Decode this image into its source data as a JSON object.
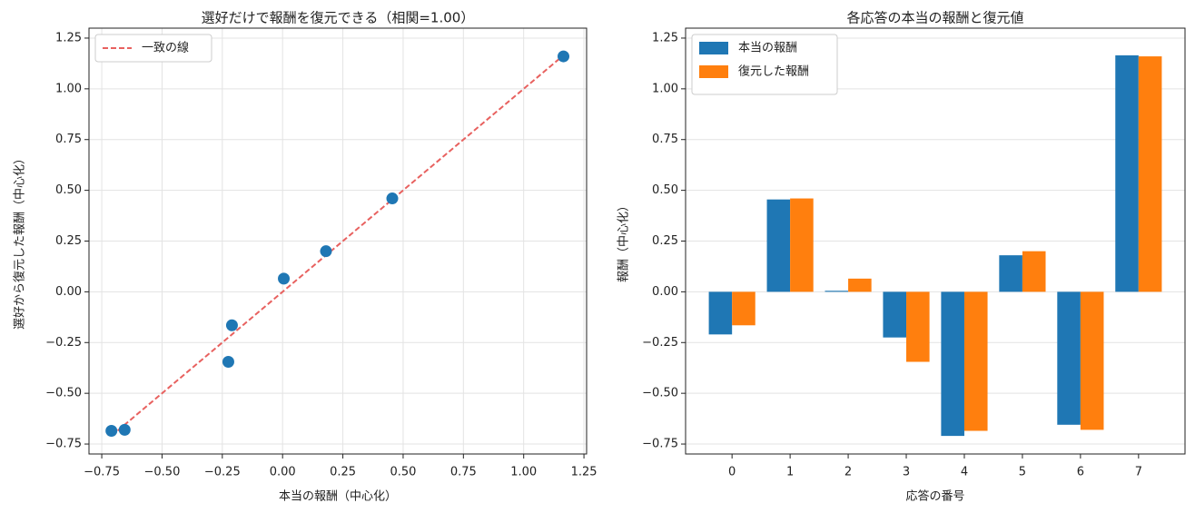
{
  "chart_data": [
    {
      "type": "scatter",
      "title": "選好だけで報酬を復元できる（相関=1.00）",
      "x_label": "本当の報酬（中心化）",
      "y_label": "選好から復元した報酬（中心化）",
      "x": [
        -0.71,
        -0.655,
        -0.225,
        -0.21,
        0.005,
        0.18,
        0.455,
        1.165
      ],
      "values": [
        -0.685,
        -0.68,
        -0.345,
        -0.165,
        0.065,
        0.2,
        0.46,
        1.16
      ],
      "color": "#1f77b4",
      "reference_line": {
        "name": "一致の線",
        "color": "#e8615f",
        "x": [
          -0.71,
          1.165
        ],
        "values": [
          -0.71,
          1.165
        ]
      },
      "xlim": [
        -0.803,
        1.261
      ],
      "ylim": [
        -0.799,
        1.299
      ],
      "xticks": [
        {
          "value": -0.75,
          "label": "−0.75"
        },
        {
          "value": -0.5,
          "label": "−0.50"
        },
        {
          "value": -0.25,
          "label": "−0.25"
        },
        {
          "value": 0,
          "label": "0.00"
        },
        0.25,
        {
          "value": 0.5,
          "label": "0.50"
        },
        0.75,
        {
          "value": 1,
          "label": "1.00"
        },
        1.25
      ],
      "yticks": [
        {
          "value": -0.75,
          "label": "−0.75"
        },
        {
          "value": -0.5,
          "label": "−0.50"
        },
        {
          "value": -0.25,
          "label": "−0.25"
        },
        {
          "value": 0,
          "label": "0.00"
        },
        0.25,
        {
          "value": 0.5,
          "label": "0.50"
        },
        0.75,
        {
          "value": 1,
          "label": "1.00"
        },
        1.25
      ],
      "grid": "both",
      "legend": "upper left"
    },
    {
      "type": "bar",
      "title": "各応答の本当の報酬と復元値",
      "x_label": "応答の番号",
      "y_label": "報酬（中心化）",
      "categories": [
        "0",
        "1",
        "2",
        "3",
        "4",
        "5",
        "6",
        "7"
      ],
      "series": [
        {
          "name": "本当の報酬",
          "color": "#1f77b4",
          "values": [
            -0.21,
            0.455,
            0.005,
            -0.225,
            -0.71,
            0.18,
            -0.655,
            1.165
          ]
        },
        {
          "name": "復元した報酬",
          "color": "#ff7f0e",
          "values": [
            -0.165,
            0.46,
            0.065,
            -0.345,
            -0.685,
            0.2,
            -0.68,
            1.16
          ]
        }
      ],
      "ylim": [
        -0.799,
        1.299
      ],
      "yticks": [
        {
          "value": -0.75,
          "label": "−0.75"
        },
        {
          "value": -0.5,
          "label": "−0.50"
        },
        {
          "value": -0.25,
          "label": "−0.25"
        },
        {
          "value": 0,
          "label": "0.00"
        },
        0.25,
        {
          "value": 0.5,
          "label": "0.50"
        },
        0.75,
        {
          "value": 1,
          "label": "1.00"
        },
        1.25
      ],
      "grid": "y",
      "legend": "upper left"
    }
  ]
}
